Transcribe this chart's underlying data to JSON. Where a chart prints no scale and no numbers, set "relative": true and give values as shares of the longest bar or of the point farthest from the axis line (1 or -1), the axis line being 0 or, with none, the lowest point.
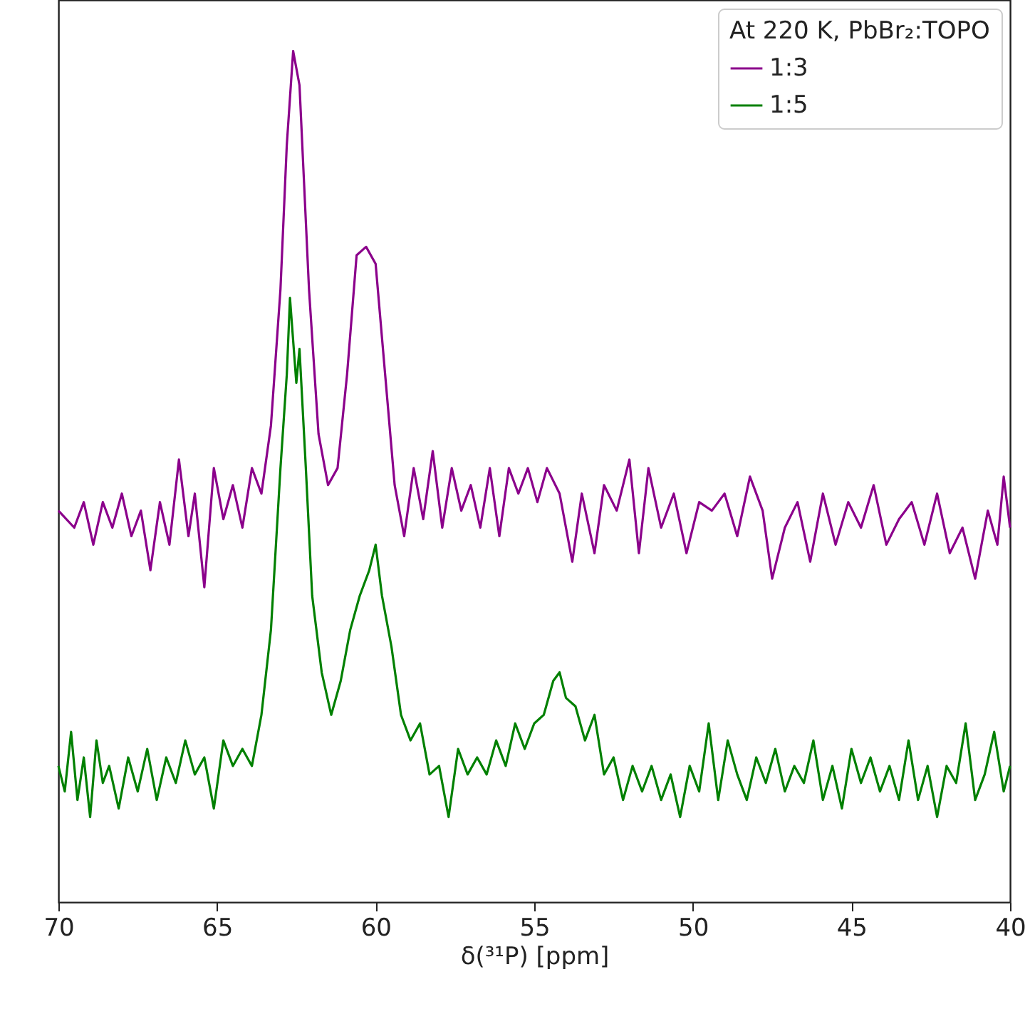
{
  "chart_data": {
    "type": "line",
    "xlabel": "δ(³¹P) [ppm]",
    "legend_title": "At 220 K, PbBr₂:TOPO",
    "legend": "top right",
    "relative": true,
    "grid": false,
    "xlim": [
      70,
      40
    ],
    "xticks": [
      70,
      65,
      60,
      55,
      50,
      45,
      40
    ],
    "series": [
      {
        "name": "1:3",
        "color": "#8b008b",
        "x": [
          70,
          69.5,
          69.2,
          68.9,
          68.6,
          68.3,
          68,
          67.7,
          67.4,
          67.1,
          66.8,
          66.5,
          66.2,
          65.9,
          65.7,
          65.4,
          65.1,
          64.8,
          64.5,
          64.2,
          63.9,
          63.6,
          63.3,
          63,
          62.8,
          62.6,
          62.4,
          62.1,
          61.8,
          61.5,
          61.2,
          60.9,
          60.6,
          60.3,
          60,
          59.7,
          59.4,
          59.1,
          58.8,
          58.5,
          58.2,
          57.9,
          57.6,
          57.3,
          57,
          56.7,
          56.4,
          56.1,
          55.8,
          55.5,
          55.2,
          54.9,
          54.6,
          54.2,
          53.8,
          53.5,
          53.1,
          52.8,
          52.4,
          52,
          51.7,
          51.4,
          51,
          50.6,
          50.2,
          49.8,
          49.4,
          49,
          48.6,
          48.2,
          47.8,
          47.5,
          47.1,
          46.7,
          46.3,
          45.9,
          45.5,
          45.1,
          44.7,
          44.3,
          43.9,
          43.5,
          43.1,
          42.7,
          42.3,
          41.9,
          41.5,
          41.1,
          40.7,
          40.4,
          40.2,
          40
        ],
        "values": [
          0.46,
          0.44,
          0.47,
          0.42,
          0.47,
          0.44,
          0.48,
          0.43,
          0.46,
          0.39,
          0.47,
          0.42,
          0.52,
          0.43,
          0.48,
          0.37,
          0.51,
          0.45,
          0.49,
          0.44,
          0.51,
          0.48,
          0.56,
          0.72,
          0.89,
          1.0,
          0.96,
          0.72,
          0.55,
          0.49,
          0.51,
          0.62,
          0.76,
          0.77,
          0.75,
          0.62,
          0.49,
          0.43,
          0.51,
          0.45,
          0.53,
          0.44,
          0.51,
          0.46,
          0.49,
          0.44,
          0.51,
          0.43,
          0.51,
          0.48,
          0.51,
          0.47,
          0.51,
          0.48,
          0.4,
          0.48,
          0.41,
          0.49,
          0.46,
          0.52,
          0.41,
          0.51,
          0.44,
          0.48,
          0.41,
          0.47,
          0.46,
          0.48,
          0.43,
          0.5,
          0.46,
          0.38,
          0.44,
          0.47,
          0.4,
          0.48,
          0.42,
          0.47,
          0.44,
          0.49,
          0.42,
          0.45,
          0.47,
          0.42,
          0.48,
          0.41,
          0.44,
          0.38,
          0.46,
          0.42,
          0.5,
          0.44
        ]
      },
      {
        "name": "1:5",
        "color": "#008000",
        "x": [
          70,
          69.8,
          69.6,
          69.4,
          69.2,
          69,
          68.8,
          68.6,
          68.4,
          68.1,
          67.8,
          67.5,
          67.2,
          66.9,
          66.6,
          66.3,
          66,
          65.7,
          65.4,
          65.1,
          64.8,
          64.5,
          64.2,
          63.9,
          63.6,
          63.3,
          63,
          62.8,
          62.7,
          62.5,
          62.4,
          62.2,
          62,
          61.7,
          61.4,
          61.1,
          60.8,
          60.5,
          60.2,
          60,
          59.8,
          59.5,
          59.2,
          58.9,
          58.6,
          58.3,
          58,
          57.7,
          57.4,
          57.1,
          56.8,
          56.5,
          56.2,
          55.9,
          55.6,
          55.3,
          55,
          54.7,
          54.4,
          54.2,
          54,
          53.7,
          53.4,
          53.1,
          52.8,
          52.5,
          52.2,
          51.9,
          51.6,
          51.3,
          51,
          50.7,
          50.4,
          50.1,
          49.8,
          49.5,
          49.2,
          48.9,
          48.6,
          48.3,
          48,
          47.7,
          47.4,
          47.1,
          46.8,
          46.5,
          46.2,
          45.9,
          45.6,
          45.3,
          45,
          44.7,
          44.4,
          44.1,
          43.8,
          43.5,
          43.2,
          42.9,
          42.6,
          42.3,
          42,
          41.7,
          41.4,
          41.1,
          40.8,
          40.5,
          40.2,
          40
        ],
        "values": [
          0.16,
          0.13,
          0.2,
          0.12,
          0.17,
          0.1,
          0.19,
          0.14,
          0.16,
          0.11,
          0.17,
          0.13,
          0.18,
          0.12,
          0.17,
          0.14,
          0.19,
          0.15,
          0.17,
          0.11,
          0.19,
          0.16,
          0.18,
          0.16,
          0.22,
          0.32,
          0.51,
          0.62,
          0.71,
          0.61,
          0.65,
          0.51,
          0.36,
          0.27,
          0.22,
          0.26,
          0.32,
          0.36,
          0.39,
          0.42,
          0.36,
          0.3,
          0.22,
          0.19,
          0.21,
          0.15,
          0.16,
          0.1,
          0.18,
          0.15,
          0.17,
          0.15,
          0.19,
          0.16,
          0.21,
          0.18,
          0.21,
          0.22,
          0.26,
          0.27,
          0.24,
          0.23,
          0.19,
          0.22,
          0.15,
          0.17,
          0.12,
          0.16,
          0.13,
          0.16,
          0.12,
          0.15,
          0.1,
          0.16,
          0.13,
          0.21,
          0.12,
          0.19,
          0.15,
          0.12,
          0.17,
          0.14,
          0.18,
          0.13,
          0.16,
          0.14,
          0.19,
          0.12,
          0.16,
          0.11,
          0.18,
          0.14,
          0.17,
          0.13,
          0.16,
          0.12,
          0.19,
          0.12,
          0.16,
          0.1,
          0.16,
          0.14,
          0.21,
          0.12,
          0.15,
          0.2,
          0.13,
          0.16
        ]
      }
    ]
  }
}
